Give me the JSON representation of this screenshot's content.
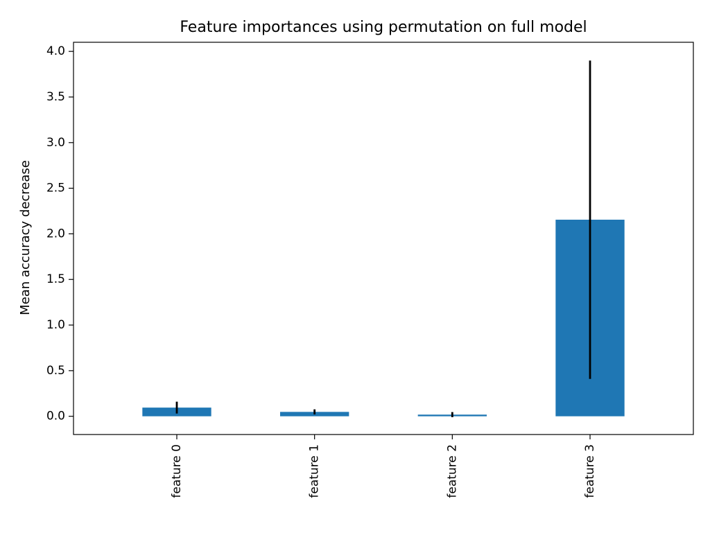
{
  "chart_data": {
    "type": "bar",
    "title": "Feature importances using permutation on full model",
    "xlabel": "",
    "ylabel": "Mean accuracy decrease",
    "categories": [
      "feature 0",
      "feature 1",
      "feature 2",
      "feature 3"
    ],
    "values": [
      0.095,
      0.048,
      0.018,
      2.155
    ],
    "errors": [
      0.065,
      0.028,
      0.028,
      1.745
    ],
    "ylim": [
      -0.2,
      4.1
    ],
    "yticks": [
      0.0,
      0.5,
      1.0,
      1.5,
      2.0,
      2.5,
      3.0,
      3.5,
      4.0
    ],
    "ytick_labels": [
      "0.0",
      "0.5",
      "1.0",
      "1.5",
      "2.0",
      "2.5",
      "3.0",
      "3.5",
      "4.0"
    ],
    "xtick_rotation": 90,
    "grid": false,
    "legend": "none",
    "bar_color": "#1f77b4",
    "error_color": "#000000"
  }
}
